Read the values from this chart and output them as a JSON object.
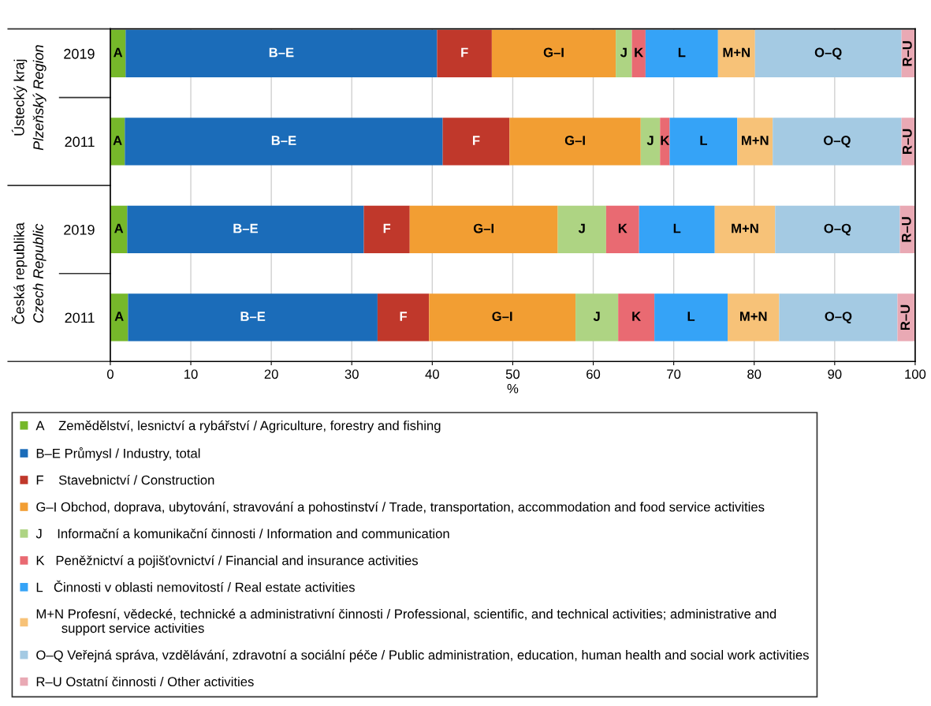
{
  "chart_data": {
    "type": "bar",
    "orientation": "horizontal",
    "stacked": true,
    "xlabel": "%",
    "categories": [
      "2019",
      "2011",
      "2019",
      "2011"
    ],
    "annotations": [
      "Ústecký kraj",
      "Plzeňský Region",
      "Česká republika",
      "Czech Republic"
    ],
    "xlim": [
      0,
      100
    ],
    "xticks": [
      0,
      10,
      20,
      30,
      40,
      50,
      60,
      70,
      80,
      90,
      100
    ],
    "grid": "x",
    "legend": "bottom",
    "series": [
      {
        "name": "A    Zemědělství, lesnictví a rybářství / Agriculture, forestry and fishing",
        "color": "#76b82a",
        "values": [
          1.9,
          1.8,
          2.1,
          2.2
        ],
        "value_labels": [
          "A",
          "A",
          "A",
          "A"
        ]
      },
      {
        "name": "B–E Průmysl / Industry, total",
        "color": "#1b6cb9",
        "values": [
          38.7,
          39.5,
          29.4,
          31.0
        ],
        "value_labels": [
          "B–E",
          "B–E",
          "B–E",
          "B–E"
        ]
      },
      {
        "name": "F    Stavebnictví / Construction",
        "color": "#c0382b",
        "values": [
          6.8,
          8.3,
          5.7,
          6.4
        ],
        "value_labels": [
          "F",
          "F",
          "F",
          "F"
        ]
      },
      {
        "name": "G–I Obchod, doprava, ubytování, stravování a pohostinství / Trade, transportation, accommodation and food service activities",
        "color": "#f29e33",
        "values": [
          15.4,
          16.3,
          18.4,
          18.2
        ],
        "value_labels": [
          "G–I",
          "G–I",
          "G–I",
          "G–I"
        ]
      },
      {
        "name": "J    Informační a komunikační činnosti / Information and communication",
        "color": "#aed483",
        "values": [
          2.0,
          2.4,
          6.0,
          5.3
        ],
        "value_labels": [
          "J",
          "J",
          "J",
          "J"
        ]
      },
      {
        "name": "K   Peněžnictví a pojišťovnictví / Financial and insurance activities",
        "color": "#e96a72",
        "values": [
          1.7,
          1.2,
          4.1,
          4.5
        ],
        "value_labels": [
          "K",
          "K",
          "K",
          "K"
        ]
      },
      {
        "name": "L   Činnosti v oblasti nemovitostí / Real estate activities",
        "color": "#35a3f7",
        "values": [
          9.0,
          8.4,
          9.4,
          9.1
        ],
        "value_labels": [
          "L",
          "L",
          "L",
          "L"
        ]
      },
      {
        "name": "M+N Profesní, vědecké, technické a administrativní činnosti / Professional, scientific, and technical activities; administrative and\n       support service activities",
        "color": "#f7c278",
        "values": [
          4.6,
          4.4,
          7.5,
          6.4
        ],
        "value_labels": [
          "M+N",
          "M+N",
          "M+N",
          "M+N"
        ]
      },
      {
        "name": "O–Q Veřejná správa, vzdělávání, zdravotní a sociální péče / Public administration, education, human health and social work activities",
        "color": "#a4cae3",
        "values": [
          18.2,
          16.0,
          15.5,
          14.7
        ],
        "value_labels": [
          "O–Q",
          "O–Q",
          "O–Q",
          "O–Q"
        ]
      },
      {
        "name": "R–U Ostatní činnosti / Other activities",
        "color": "#e9a9b4",
        "values": [
          1.7,
          1.7,
          1.9,
          2.2
        ],
        "value_labels": [
          "R–U",
          "R–U",
          "R–U",
          "R–U"
        ]
      }
    ]
  }
}
